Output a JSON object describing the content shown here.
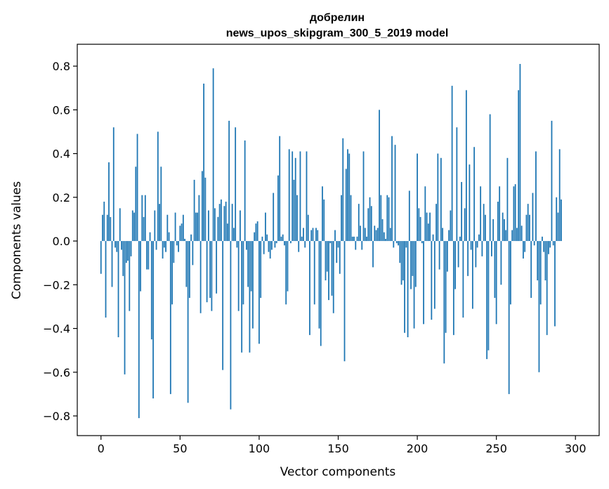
{
  "chart_data": {
    "type": "bar",
    "title_line1": "добрелин",
    "title_line2": "news_upos_skipgram_300_5_2019 model",
    "xlabel": "Vector components",
    "ylabel": "Components values",
    "xlim": [
      -15,
      315
    ],
    "ylim": [
      -0.89,
      0.9
    ],
    "x_ticks": [
      0,
      50,
      100,
      150,
      200,
      250,
      300
    ],
    "y_ticks": [
      -0.8,
      -0.6,
      -0.4,
      -0.2,
      0.0,
      0.2,
      0.4,
      0.6,
      0.8
    ],
    "y_tick_labels": [
      "−0.8",
      "−0.6",
      "−0.4",
      "−0.2",
      "0.0",
      "0.2",
      "0.4",
      "0.6",
      "0.8"
    ],
    "bar_color": "#1f77b4",
    "grid": false,
    "values": [
      -0.15,
      0.12,
      0.18,
      -0.35,
      0.12,
      0.36,
      0.11,
      -0.21,
      0.52,
      -0.03,
      -0.05,
      -0.44,
      0.15,
      -0.04,
      -0.16,
      -0.61,
      -0.1,
      -0.09,
      -0.32,
      -0.07,
      0.14,
      0.13,
      0.34,
      0.49,
      -0.81,
      -0.23,
      0.21,
      0.11,
      0.21,
      -0.13,
      -0.13,
      0.04,
      -0.45,
      -0.72,
      0.14,
      -0.04,
      0.5,
      0.17,
      0.34,
      -0.08,
      -0.03,
      -0.05,
      0.12,
      0.04,
      -0.7,
      -0.29,
      -0.1,
      0.13,
      -0.02,
      -0.05,
      0.07,
      0.08,
      0.12,
      0.01,
      -0.21,
      -0.74,
      -0.26,
      0.03,
      -0.11,
      0.28,
      0.13,
      0.13,
      0.21,
      -0.33,
      0.32,
      0.72,
      0.29,
      -0.28,
      0.14,
      -0.26,
      -0.32,
      0.79,
      0.15,
      -0.24,
      0.11,
      0.17,
      0.19,
      -0.59,
      0.16,
      0.18,
      0.08,
      0.55,
      -0.77,
      0.17,
      0.06,
      0.52,
      -0.03,
      -0.32,
      0.14,
      -0.51,
      -0.29,
      0.46,
      -0.04,
      -0.21,
      -0.51,
      -0.23,
      -0.4,
      0.04,
      0.08,
      0.09,
      -0.47,
      -0.26,
      0.02,
      -0.06,
      0.13,
      0.03,
      -0.05,
      -0.08,
      -0.04,
      0.22,
      -0.03,
      -0.01,
      0.3,
      0.48,
      0.02,
      0.03,
      -0.02,
      -0.29,
      -0.23,
      0.42,
      -0.01,
      0.41,
      0.28,
      0.38,
      0.21,
      -0.05,
      0.41,
      0.02,
      0.06,
      -0.03,
      0.41,
      0.12,
      -0.43,
      0.05,
      0.06,
      -0.29,
      0.06,
      0.05,
      -0.4,
      -0.48,
      0.25,
      0.19,
      -0.18,
      -0.14,
      -0.27,
      -0.01,
      -0.25,
      -0.33,
      0.05,
      -0.1,
      -0.03,
      -0.15,
      0.21,
      0.47,
      -0.55,
      0.33,
      0.42,
      0.4,
      0.21,
      0.02,
      0.02,
      -0.04,
      0.02,
      0.17,
      0.07,
      -0.04,
      0.41,
      0.06,
      0.02,
      0.15,
      0.2,
      0.16,
      -0.12,
      0.07,
      0.05,
      0.06,
      0.6,
      0.21,
      0.1,
      0.04,
      0.01,
      0.21,
      0.2,
      0.06,
      0.48,
      -0.03,
      0.44,
      -0.01,
      -0.02,
      -0.1,
      -0.2,
      -0.18,
      -0.42,
      -0.03,
      -0.44,
      0.23,
      -0.22,
      -0.16,
      -0.4,
      -0.21,
      0.4,
      0.15,
      0.11,
      -0.01,
      -0.38,
      0.25,
      0.13,
      0.08,
      0.13,
      -0.36,
      0.03,
      -0.31,
      0.17,
      0.4,
      -0.13,
      0.38,
      0.06,
      -0.56,
      -0.42,
      -0.14,
      0.05,
      0.14,
      0.71,
      -0.43,
      -0.22,
      0.52,
      -0.12,
      0.02,
      0.27,
      -0.35,
      0.15,
      0.69,
      -0.16,
      0.35,
      -0.04,
      -0.31,
      0.43,
      -0.12,
      -0.03,
      0.03,
      0.25,
      -0.07,
      0.17,
      0.12,
      -0.54,
      -0.5,
      0.58,
      -0.07,
      0.1,
      -0.26,
      -0.38,
      0.18,
      0.25,
      -0.2,
      0.13,
      0.1,
      0.05,
      0.38,
      -0.7,
      -0.29,
      0.05,
      0.25,
      0.26,
      0.06,
      0.69,
      0.81,
      0.07,
      -0.08,
      -0.05,
      0.12,
      0.17,
      0.12,
      -0.26,
      0.22,
      -0.02,
      0.41,
      -0.18,
      -0.6,
      -0.29,
      0.02,
      -0.05,
      -0.18,
      -0.43,
      -0.06,
      -0.03,
      0.55,
      -0.02,
      -0.39,
      0.2,
      0.13,
      0.42,
      0.19
    ]
  }
}
